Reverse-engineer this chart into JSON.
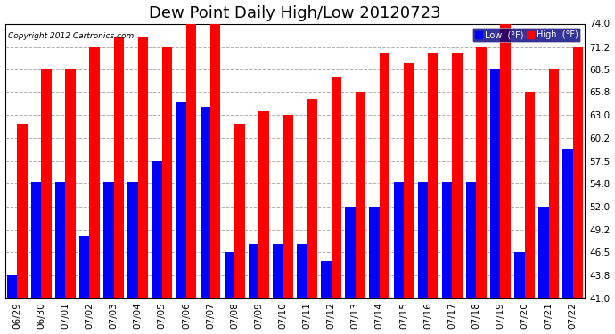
{
  "title": "Dew Point Daily High/Low 20120723",
  "copyright": "Copyright 2012 Cartronics.com",
  "dates": [
    "06/29",
    "06/30",
    "07/01",
    "07/02",
    "07/03",
    "07/04",
    "07/05",
    "07/06",
    "07/07",
    "07/08",
    "07/09",
    "07/10",
    "07/11",
    "07/12",
    "07/13",
    "07/14",
    "07/15",
    "07/16",
    "07/17",
    "07/18",
    "07/19",
    "07/20",
    "07/21",
    "07/22"
  ],
  "high_values": [
    62.0,
    68.5,
    68.5,
    71.2,
    72.5,
    72.5,
    71.2,
    74.0,
    74.0,
    62.0,
    63.5,
    63.0,
    65.0,
    67.5,
    65.8,
    70.5,
    69.2,
    70.5,
    70.5,
    71.2,
    74.0,
    65.8,
    68.5,
    71.2
  ],
  "low_values": [
    43.8,
    55.0,
    55.0,
    48.5,
    55.0,
    55.0,
    57.5,
    64.5,
    64.0,
    46.5,
    47.5,
    47.5,
    47.5,
    45.5,
    52.0,
    52.0,
    55.0,
    55.0,
    55.0,
    55.0,
    68.5,
    46.5,
    52.0,
    59.0
  ],
  "high_color": "#ff0000",
  "low_color": "#0000ff",
  "bg_color": "#ffffff",
  "plot_bg_color": "#ffffff",
  "grid_color": "#b0b0b0",
  "ymin": 41.0,
  "ymax": 74.0,
  "yticks": [
    41.0,
    43.8,
    46.5,
    49.2,
    52.0,
    54.8,
    57.5,
    60.2,
    63.0,
    65.8,
    68.5,
    71.2,
    74.0
  ],
  "title_fontsize": 13,
  "tick_fontsize": 7.5,
  "bar_width": 0.42,
  "legend_labels": [
    "Low  (°F)",
    "High  (°F)"
  ]
}
